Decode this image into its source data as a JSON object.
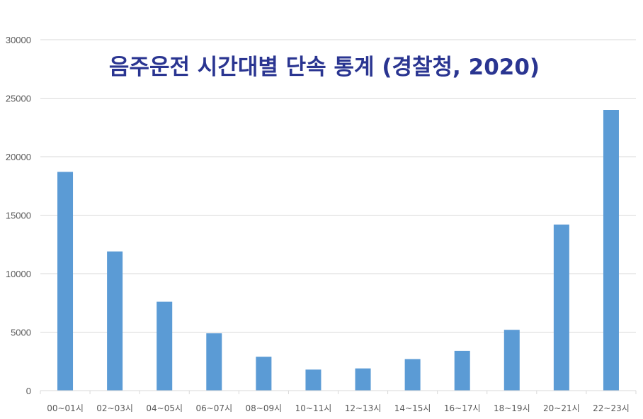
{
  "chart_data": {
    "type": "bar",
    "title": "음주운전 시간대별 단속 통계 (경찰청, 2020)",
    "xlabel": "",
    "ylabel": "",
    "categories": [
      "00~01시",
      "02~03시",
      "04~05시",
      "06~07시",
      "08~09시",
      "10~11시",
      "12~13시",
      "14~15시",
      "16~17시",
      "18~19시",
      "20~21시",
      "22~23시"
    ],
    "values": [
      18700,
      11900,
      7600,
      4900,
      2900,
      1800,
      1900,
      2700,
      3400,
      5200,
      14200,
      24000
    ],
    "ylim": [
      0,
      30000
    ],
    "yticks": [
      0,
      5000,
      10000,
      15000,
      20000,
      25000,
      30000
    ],
    "grid": true,
    "legend": "none",
    "bar_color": "#5b9bd5",
    "title_color": "#2a3591"
  }
}
